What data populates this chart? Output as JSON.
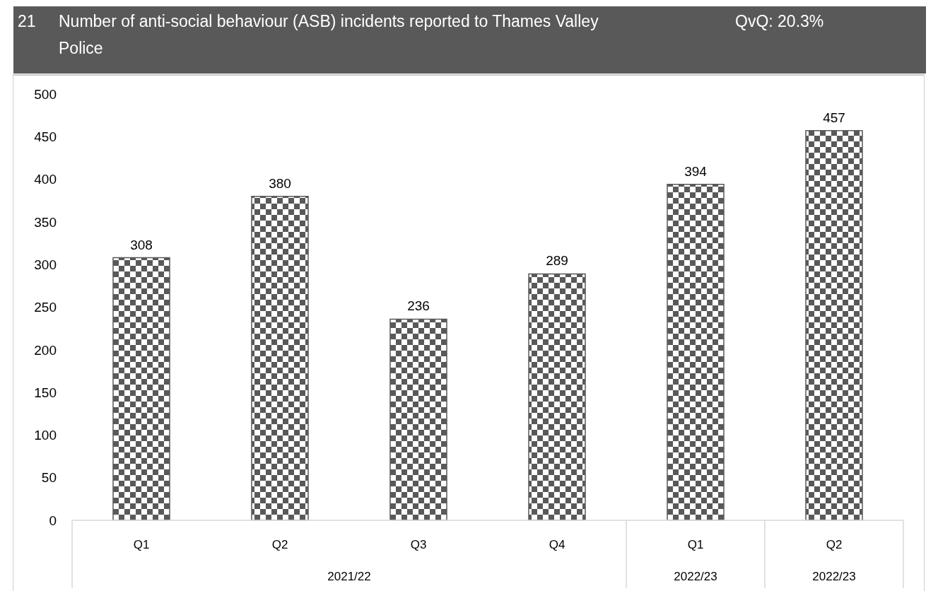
{
  "chart_data": {
    "type": "bar",
    "title": "Number of anti-social behaviour (ASB) incidents reported to Thames Valley Police",
    "subtitle": "QvQ: 20.3%",
    "annotations": [
      "21",
      "2021/22",
      "2022/23",
      "2022/23"
    ],
    "categories": [
      "Q1",
      "Q2",
      "Q3",
      "Q4",
      "Q1",
      "Q2"
    ],
    "values": [
      308,
      380,
      236,
      289,
      394,
      457
    ],
    "color": "#595959",
    "ylim": [
      0,
      500
    ],
    "yticks": [
      0,
      50,
      100,
      150,
      200,
      250,
      300,
      350,
      400,
      450,
      500
    ],
    "data_labels": true
  }
}
